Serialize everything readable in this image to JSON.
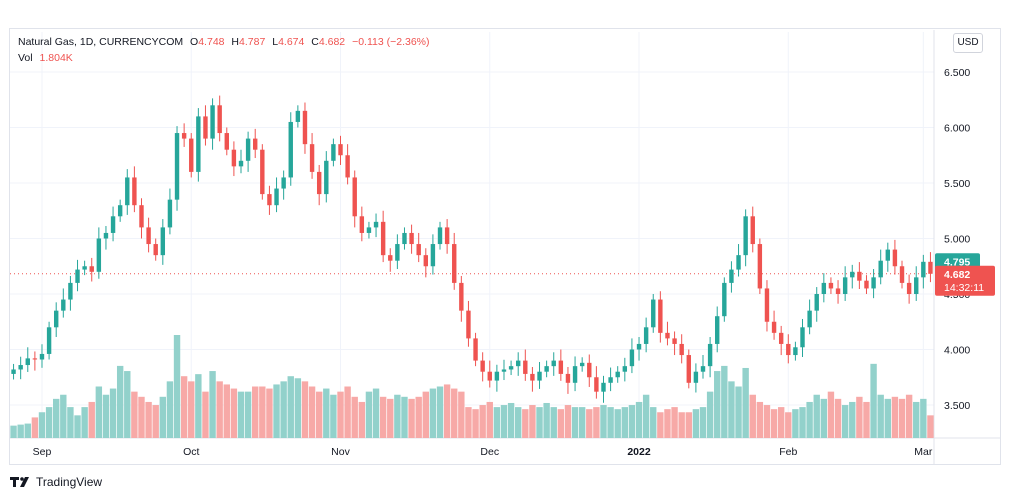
{
  "legend": {
    "symbol": "Natural Gas, 1D, CURRENCYCOM",
    "o_label": "O",
    "o_value": "4.748",
    "h_label": "H",
    "h_value": "4.787",
    "l_label": "L",
    "l_value": "4.674",
    "c_label": "C",
    "c_value": "4.682",
    "change": "−0.113 (−2.36%)",
    "vol_label": "Vol",
    "vol_value": "1.804K"
  },
  "currency_button": "USD",
  "footer": {
    "brand": "TradingView"
  },
  "colors": {
    "up": "#26a69a",
    "down": "#ef5350",
    "vol_up": "#92d1cb",
    "vol_down": "#f7a9a7",
    "grid": "#f0f3fa"
  },
  "chart_data": {
    "type": "candlestick",
    "title": "Natural Gas, 1D, CURRENCYCOM",
    "ylabel": "",
    "ylim": [
      3.25,
      6.6
    ],
    "y_ticks": [
      "3.500",
      "4.000",
      "4.500",
      "5.000",
      "5.500",
      "6.000",
      "6.500"
    ],
    "x_ticks": [
      {
        "label": "Sep",
        "index": 4
      },
      {
        "label": "Oct",
        "index": 25
      },
      {
        "label": "Nov",
        "index": 46
      },
      {
        "label": "Dec",
        "index": 67
      },
      {
        "label": "2022",
        "index": 88
      },
      {
        "label": "Feb",
        "index": 109
      },
      {
        "label": "Mar",
        "index": 128
      }
    ],
    "last_price": {
      "label": "4.682",
      "countdown": "14:32:11",
      "value": 4.682
    },
    "prev_close": {
      "label": "4.795",
      "value": 4.795
    },
    "close": [
      3.82,
      3.86,
      3.92,
      3.91,
      3.96,
      4.2,
      4.35,
      4.45,
      4.6,
      4.72,
      4.75,
      4.7,
      5.0,
      5.05,
      5.2,
      5.3,
      5.55,
      5.3,
      5.1,
      4.95,
      4.85,
      5.1,
      5.35,
      5.95,
      5.9,
      5.6,
      6.1,
      5.9,
      6.2,
      5.95,
      5.8,
      5.65,
      5.7,
      5.9,
      5.8,
      5.4,
      5.3,
      5.45,
      5.55,
      6.05,
      6.15,
      5.85,
      5.6,
      5.4,
      5.7,
      5.85,
      5.75,
      5.55,
      5.2,
      5.05,
      5.1,
      5.15,
      4.85,
      4.8,
      4.95,
      5.05,
      4.95,
      4.85,
      4.75,
      4.95,
      5.1,
      4.95,
      4.6,
      4.35,
      4.1,
      3.9,
      3.8,
      3.72,
      3.8,
      3.82,
      3.85,
      3.9,
      3.78,
      3.72,
      3.8,
      3.85,
      3.9,
      3.78,
      3.7,
      3.85,
      3.88,
      3.75,
      3.62,
      3.7,
      3.75,
      3.8,
      3.85,
      4.0,
      4.05,
      4.2,
      4.45,
      4.15,
      4.1,
      4.05,
      3.95,
      3.7,
      3.8,
      3.85,
      4.05,
      4.3,
      4.6,
      4.72,
      4.85,
      5.2,
      4.95,
      4.55,
      4.25,
      4.15,
      4.05,
      3.95,
      4.02,
      4.2,
      4.35,
      4.5,
      4.6,
      4.55,
      4.5,
      4.65,
      4.7,
      4.62,
      4.55,
      4.65,
      4.8,
      4.9,
      4.75,
      4.6,
      4.5,
      4.65,
      4.79,
      4.682
    ],
    "volume_relative": [
      0.12,
      0.13,
      0.14,
      0.2,
      0.25,
      0.3,
      0.38,
      0.42,
      0.3,
      0.22,
      0.3,
      0.35,
      0.5,
      0.42,
      0.48,
      0.7,
      0.65,
      0.45,
      0.4,
      0.35,
      0.32,
      0.4,
      0.55,
      1.0,
      0.6,
      0.55,
      0.62,
      0.45,
      0.65,
      0.55,
      0.52,
      0.48,
      0.45,
      0.45,
      0.5,
      0.5,
      0.48,
      0.52,
      0.55,
      0.6,
      0.58,
      0.55,
      0.5,
      0.45,
      0.48,
      0.42,
      0.45,
      0.5,
      0.4,
      0.35,
      0.45,
      0.48,
      0.4,
      0.38,
      0.42,
      0.4,
      0.38,
      0.4,
      0.45,
      0.48,
      0.5,
      0.52,
      0.48,
      0.45,
      0.3,
      0.28,
      0.32,
      0.35,
      0.3,
      0.32,
      0.34,
      0.3,
      0.28,
      0.32,
      0.3,
      0.34,
      0.3,
      0.28,
      0.32,
      0.3,
      0.3,
      0.28,
      0.3,
      0.32,
      0.3,
      0.28,
      0.3,
      0.32,
      0.35,
      0.42,
      0.3,
      0.25,
      0.28,
      0.3,
      0.25,
      0.25,
      0.28,
      0.3,
      0.45,
      0.65,
      0.7,
      0.55,
      0.5,
      0.68,
      0.42,
      0.35,
      0.32,
      0.28,
      0.3,
      0.25,
      0.28,
      0.3,
      0.35,
      0.42,
      0.38,
      0.45,
      0.38,
      0.32,
      0.35,
      0.4,
      0.35,
      0.72,
      0.42,
      0.38,
      0.4,
      0.38,
      0.42,
      0.35,
      0.38,
      0.22
    ]
  }
}
